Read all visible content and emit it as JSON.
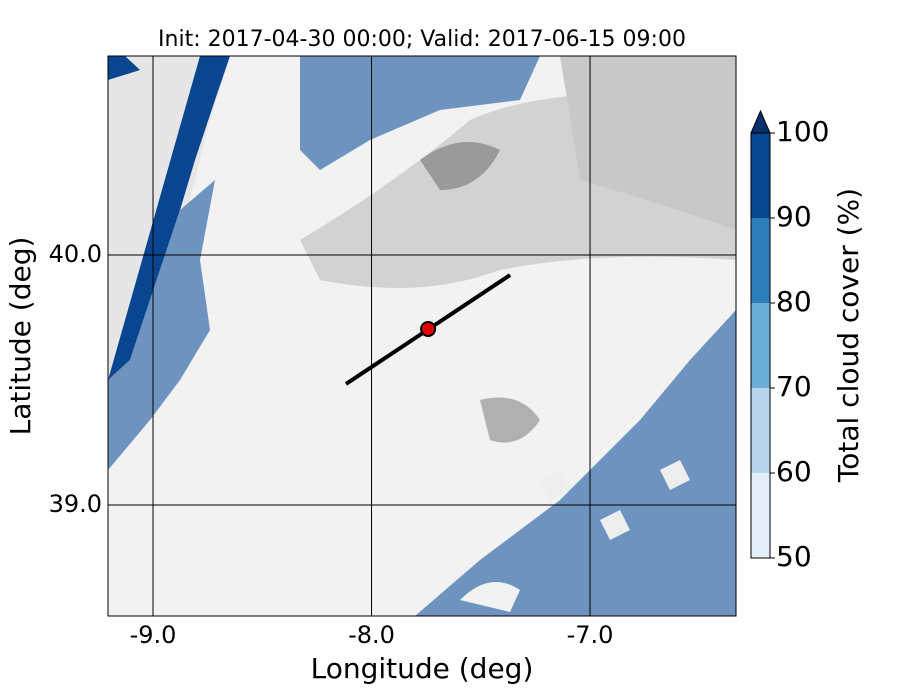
{
  "chart_data": {
    "type": "map",
    "title": "Init: 2017-04-30 00:00; Valid: 2017-06-15 09:00",
    "x_label": "Longitude (deg)",
    "y_label": "Latitude (deg)",
    "xlim": [
      -9.206,
      -6.332
    ],
    "ylim": [
      38.556,
      40.796
    ],
    "xticks": [
      {
        "value": -9,
        "label": "-9.0"
      },
      {
        "value": -8,
        "label": "-8.0"
      },
      {
        "value": -7,
        "label": "-7.0"
      }
    ],
    "yticks": [
      {
        "value": 39,
        "label": "39.0"
      },
      {
        "value": 40,
        "label": "40.0"
      }
    ],
    "grid": true,
    "transect": {
      "lon": [
        -8.117,
        -7.366
      ],
      "lat": [
        39.484,
        39.92
      ],
      "color": "#000000"
    },
    "point": {
      "lon": -7.741,
      "lat": 39.704,
      "color": "#e00000"
    },
    "colorbar": {
      "label": "Total cloud cover (%)",
      "levels": [
        50,
        60,
        70,
        80,
        90,
        100
      ],
      "colors": [
        "#e3eef8",
        "#b7d4ea",
        "#6aaed6",
        "#2e7ebc",
        "#08468f"
      ],
      "extend_color": "#08306b",
      "ticks": [
        50,
        60,
        70,
        80,
        90,
        100
      ]
    }
  }
}
